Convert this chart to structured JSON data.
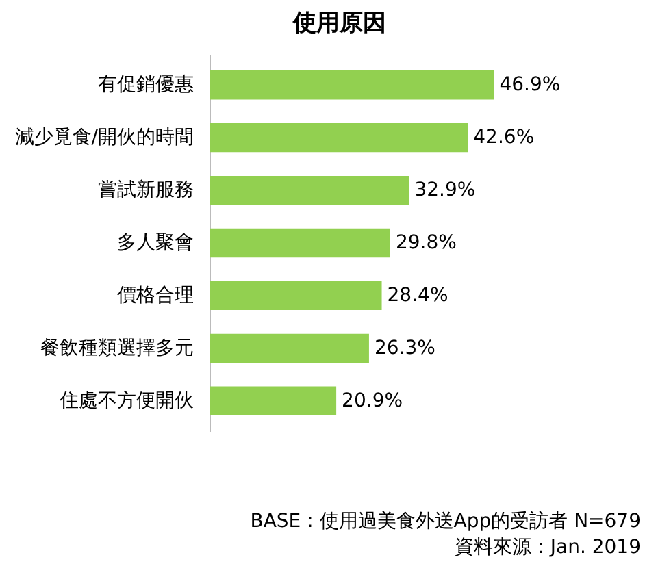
{
  "chart_data": {
    "type": "bar",
    "orientation": "horizontal",
    "title": "使用原因",
    "categories": [
      "有促銷優惠",
      "減少覓食/開伙的時間",
      "嘗試新服務",
      "多人聚會",
      "價格合理",
      "餐飲種類選擇多元",
      "住處不方便開伙"
    ],
    "values": [
      46.9,
      42.6,
      32.9,
      29.8,
      28.4,
      26.3,
      20.9
    ],
    "value_labels": [
      "46.9%",
      "42.6%",
      "32.9%",
      "29.8%",
      "28.4%",
      "26.3%",
      "20.9%"
    ],
    "color": "#92d050",
    "annotations": [
      "BASE : 使用過美食外送App的受訪者 N=679",
      "資料來源：Jan. 2019"
    ]
  }
}
